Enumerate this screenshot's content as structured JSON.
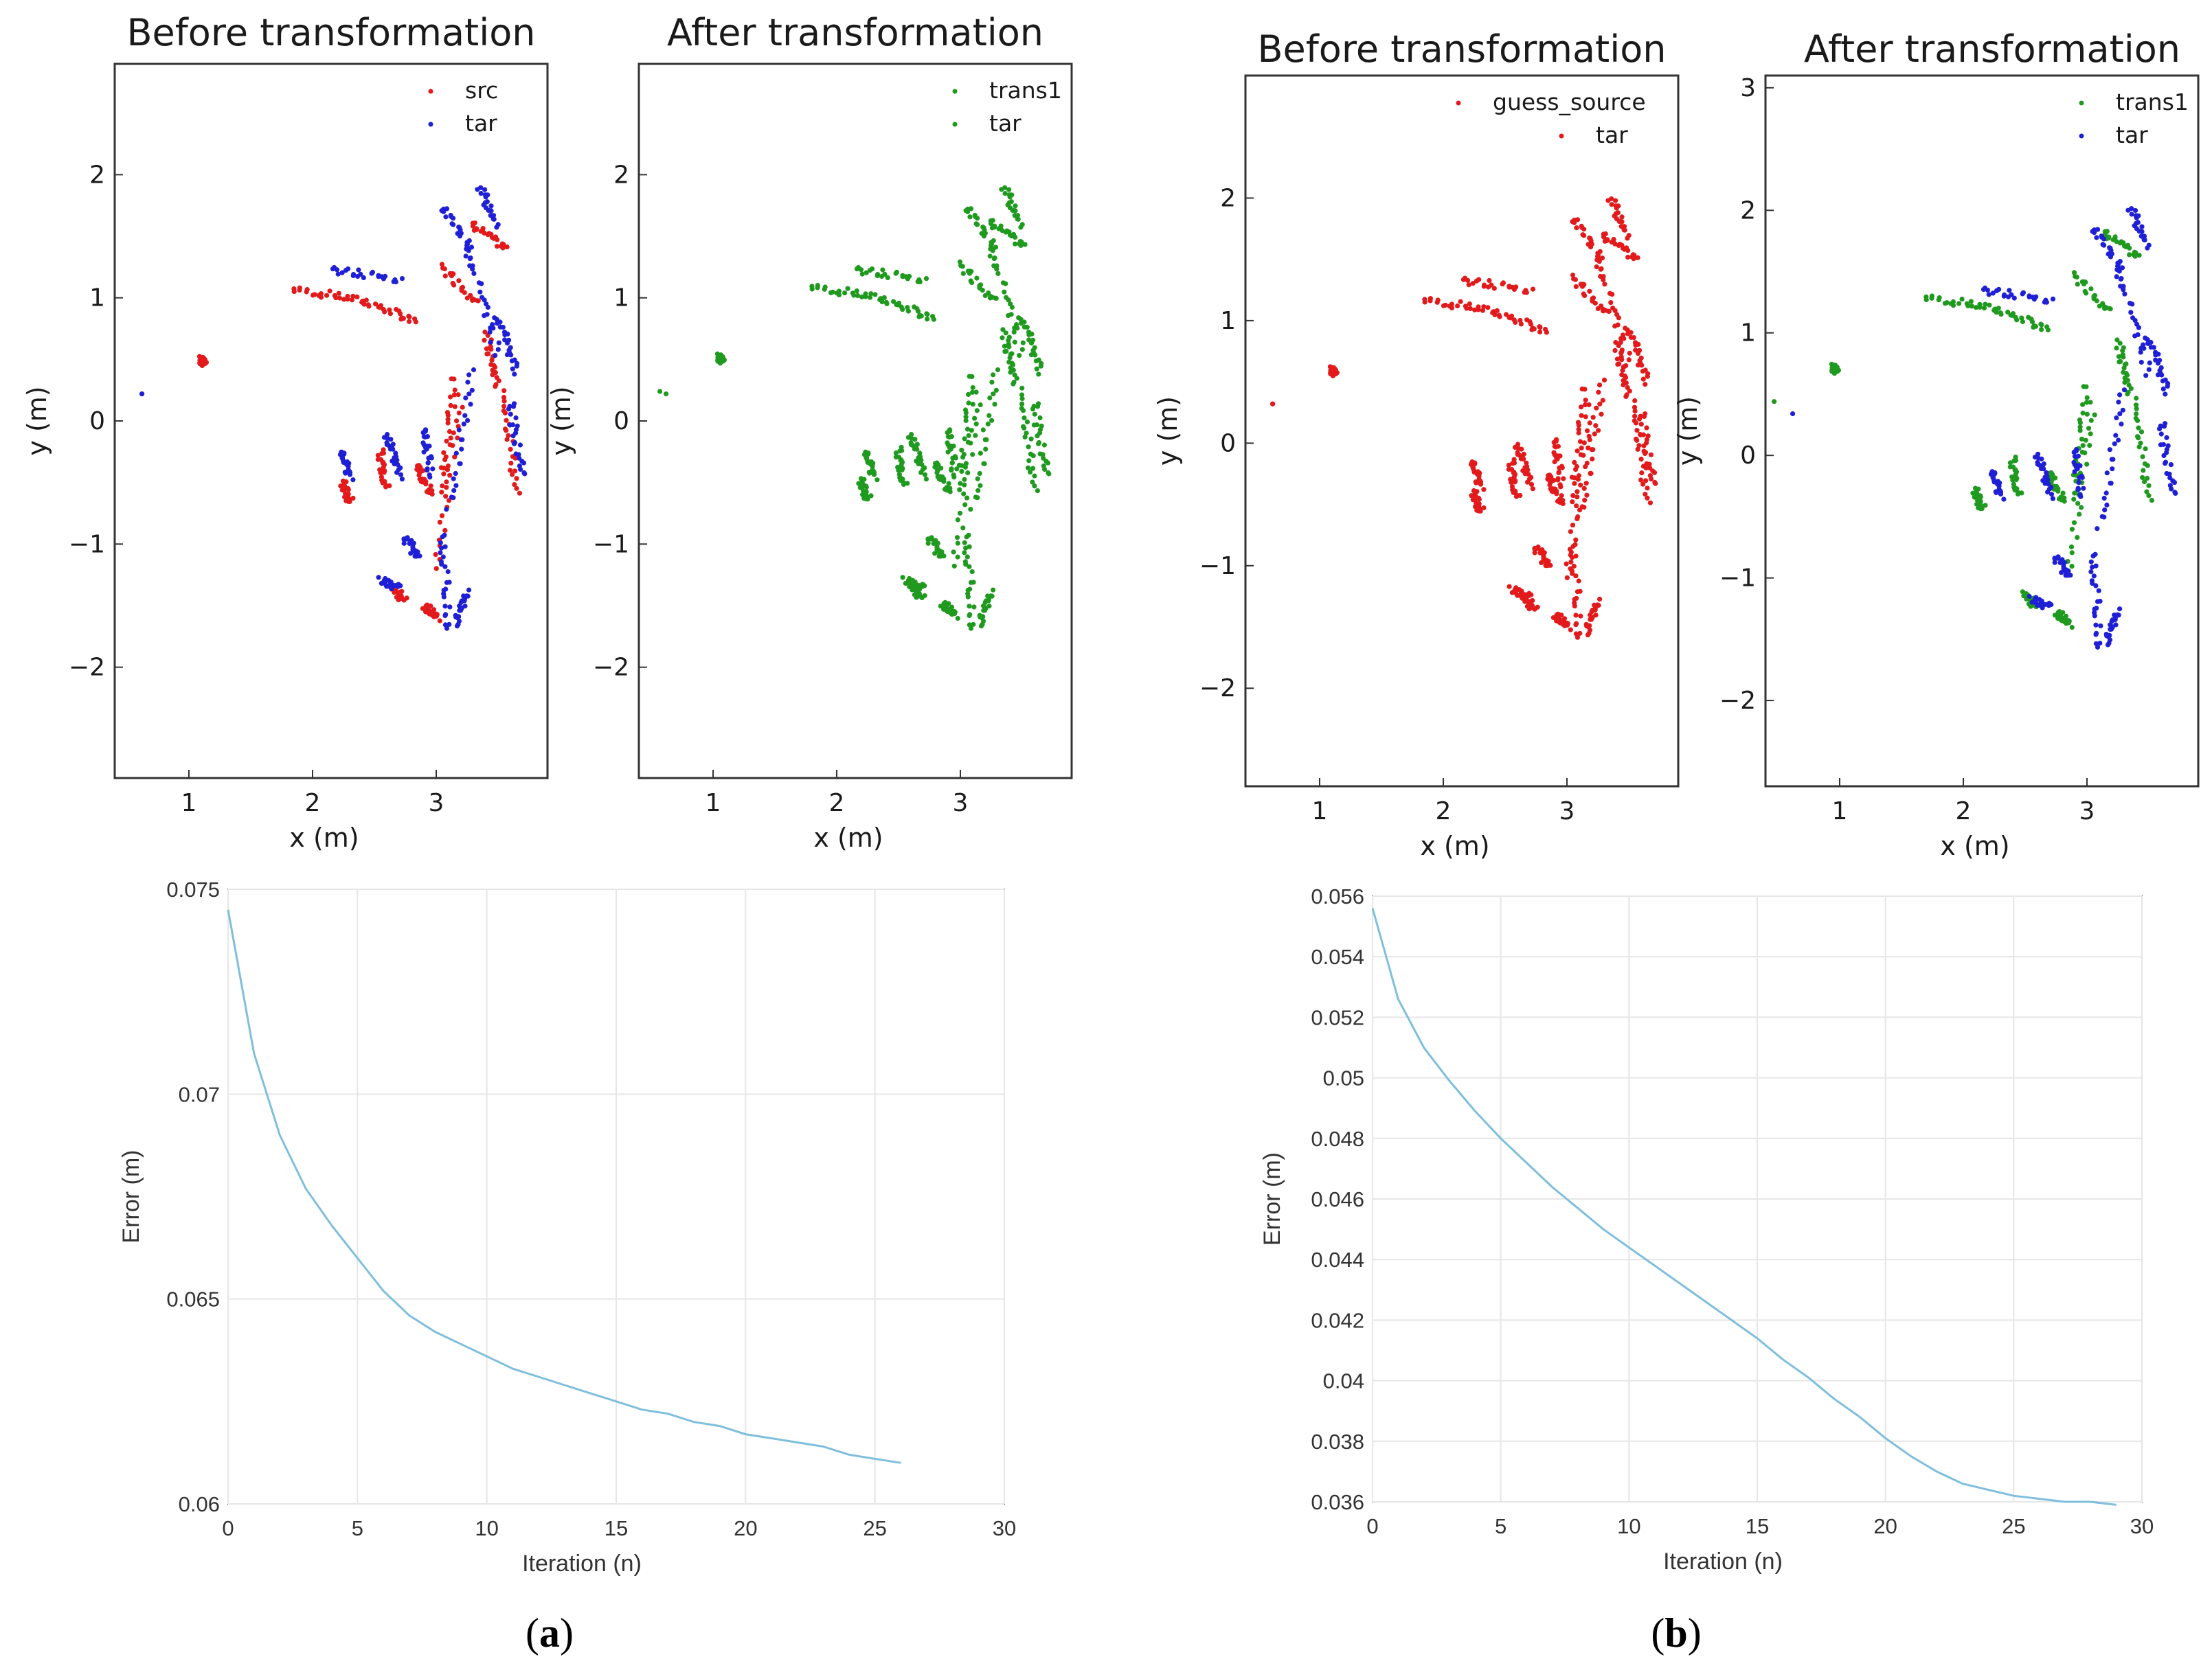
{
  "colors": {
    "src": "#e31a1c",
    "tar": "#1f1fd6",
    "trans": "#1f9a1f",
    "line": "#7fbfdc",
    "grid": "#e6e6e6"
  },
  "panels": [
    {
      "label": "a",
      "caption_open": "(",
      "caption_close": ")"
    },
    {
      "label": "b",
      "caption_open": "(",
      "caption_close": ")"
    }
  ],
  "chart_data": [
    {
      "type": "scatter",
      "panel": "a",
      "title": "Before transformation",
      "xlabel": "x (m)",
      "ylabel": "y (m)",
      "xlim": [
        0.4,
        3.9
      ],
      "ylim": [
        -2.9,
        2.9
      ],
      "xticks": [
        1,
        2,
        3
      ],
      "yticks": [
        -2,
        -1,
        0,
        1,
        2
      ],
      "xtick_labels": [
        "1",
        "2",
        "3"
      ],
      "ytick_labels": [
        "−2",
        "−1",
        "0",
        "1",
        "2"
      ],
      "legend": {
        "position": "top-right"
      },
      "series": [
        {
          "name": "src",
          "color": "#e31a1c",
          "role": "src",
          "offset": [
            0,
            0
          ]
        },
        {
          "name": "tar",
          "color": "#1f1fd6",
          "role": "tar",
          "offset": [
            0,
            0
          ]
        }
      ]
    },
    {
      "type": "scatter",
      "panel": "a",
      "title": "After transformation",
      "xlabel": "x (m)",
      "ylabel": "y (m)",
      "xlim": [
        0.4,
        3.9
      ],
      "ylim": [
        -2.9,
        2.9
      ],
      "xticks": [
        1,
        2,
        3
      ],
      "yticks": [
        -2,
        -1,
        0,
        1,
        2
      ],
      "xtick_labels": [
        "1",
        "2",
        "3"
      ],
      "ytick_labels": [
        "−2",
        "−1",
        "0",
        "1",
        "2"
      ],
      "legend": {
        "position": "top-right"
      },
      "series": [
        {
          "name": "trans1",
          "color": "#1f9a1f",
          "role": "src",
          "offset": [
            -0.05,
            0.02
          ]
        },
        {
          "name": "tar",
          "color": "#1f9a1f",
          "role": "tar",
          "offset": [
            0,
            0
          ]
        }
      ]
    },
    {
      "type": "scatter",
      "panel": "b",
      "title": "Before transformation",
      "xlabel": "x (m)",
      "ylabel": "y (m)",
      "xlim": [
        0.4,
        3.9
      ],
      "ylim": [
        -2.8,
        3.0
      ],
      "xticks": [
        1,
        2,
        3
      ],
      "yticks": [
        -2,
        -1,
        0,
        1,
        2
      ],
      "xtick_labels": [
        "1",
        "2",
        "3"
      ],
      "ytick_labels": [
        "−2",
        "−1",
        "0",
        "1",
        "2"
      ],
      "legend": {
        "position": "top-right"
      },
      "series": [
        {
          "name": "guess_source",
          "color": "#e31a1c",
          "role": "src",
          "offset": [
            0,
            0.1
          ]
        },
        {
          "name": "tar",
          "color": "#e31a1c",
          "role": "tar",
          "offset": [
            0,
            0.1
          ]
        }
      ]
    },
    {
      "type": "scatter",
      "panel": "b",
      "title": "After transformation",
      "xlabel": "x (m)",
      "ylabel": "y (m)",
      "xlim": [
        0.4,
        3.9
      ],
      "ylim": [
        -2.7,
        3.1
      ],
      "xticks": [
        1,
        2,
        3
      ],
      "yticks": [
        -2,
        -1,
        0,
        1,
        2,
        3
      ],
      "xtick_labels": [
        "1",
        "2",
        "3"
      ],
      "ytick_labels": [
        "−2",
        "−1",
        "0",
        "1",
        "2",
        "3"
      ],
      "legend": {
        "position": "top-right"
      },
      "series": [
        {
          "name": "trans1",
          "color": "#1f9a1f",
          "role": "src",
          "offset": [
            -0.15,
            0.22
          ]
        },
        {
          "name": "tar",
          "color": "#1f1fd6",
          "role": "tar",
          "offset": [
            0,
            0.12
          ]
        }
      ]
    },
    {
      "type": "line",
      "panel": "a",
      "title": "",
      "xlabel": "Iteration (n)",
      "ylabel": "Error (m)",
      "xlim": [
        0,
        30
      ],
      "ylim": [
        0.06,
        0.075
      ],
      "xticks": [
        0,
        5,
        10,
        15,
        20,
        25,
        30
      ],
      "yticks": [
        0.06,
        0.065,
        0.07,
        0.075
      ],
      "xtick_labels": [
        "0",
        "5",
        "10",
        "15",
        "20",
        "25",
        "30"
      ],
      "ytick_labels": [
        "0.06",
        "0.065",
        "0.07",
        "0.075"
      ],
      "grid": true,
      "x": [
        0,
        1,
        2,
        3,
        4,
        5,
        6,
        7,
        8,
        9,
        10,
        11,
        12,
        13,
        14,
        15,
        16,
        17,
        18,
        19,
        20,
        21,
        22,
        23,
        24,
        25,
        26
      ],
      "series": [
        {
          "name": "error",
          "values": [
            0.0745,
            0.071,
            0.069,
            0.0677,
            0.0668,
            0.066,
            0.0652,
            0.0646,
            0.0642,
            0.0639,
            0.0636,
            0.0633,
            0.0631,
            0.0629,
            0.0627,
            0.0625,
            0.0623,
            0.0622,
            0.062,
            0.0619,
            0.0617,
            0.0616,
            0.0615,
            0.0614,
            0.0612,
            0.0611,
            0.061
          ]
        }
      ]
    },
    {
      "type": "line",
      "panel": "b",
      "title": "",
      "xlabel": "Iteration (n)",
      "ylabel": "Error (m)",
      "xlim": [
        0,
        30
      ],
      "ylim": [
        0.036,
        0.056
      ],
      "xticks": [
        0,
        5,
        10,
        15,
        20,
        25,
        30
      ],
      "yticks": [
        0.036,
        0.038,
        0.04,
        0.042,
        0.044,
        0.046,
        0.048,
        0.05,
        0.052,
        0.054,
        0.056
      ],
      "xtick_labels": [
        "0",
        "5",
        "10",
        "15",
        "20",
        "25",
        "30"
      ],
      "ytick_labels": [
        "0.036",
        "0.038",
        "0.04",
        "0.042",
        "0.044",
        "0.046",
        "0.048",
        "0.05",
        "0.052",
        "0.054",
        "0.056"
      ],
      "grid": true,
      "x": [
        0,
        1,
        2,
        3,
        4,
        5,
        6,
        7,
        8,
        9,
        10,
        11,
        12,
        13,
        14,
        15,
        16,
        17,
        18,
        19,
        20,
        21,
        22,
        23,
        24,
        25,
        26,
        27,
        28,
        29
      ],
      "series": [
        {
          "name": "error",
          "values": [
            0.0556,
            0.0526,
            0.051,
            0.0499,
            0.0489,
            0.048,
            0.0472,
            0.0464,
            0.0457,
            0.045,
            0.0444,
            0.0438,
            0.0432,
            0.0426,
            0.042,
            0.0414,
            0.0407,
            0.0401,
            0.0394,
            0.0388,
            0.0381,
            0.0375,
            0.037,
            0.0366,
            0.0364,
            0.0362,
            0.0361,
            0.036,
            0.036,
            0.0359
          ]
        }
      ]
    }
  ]
}
